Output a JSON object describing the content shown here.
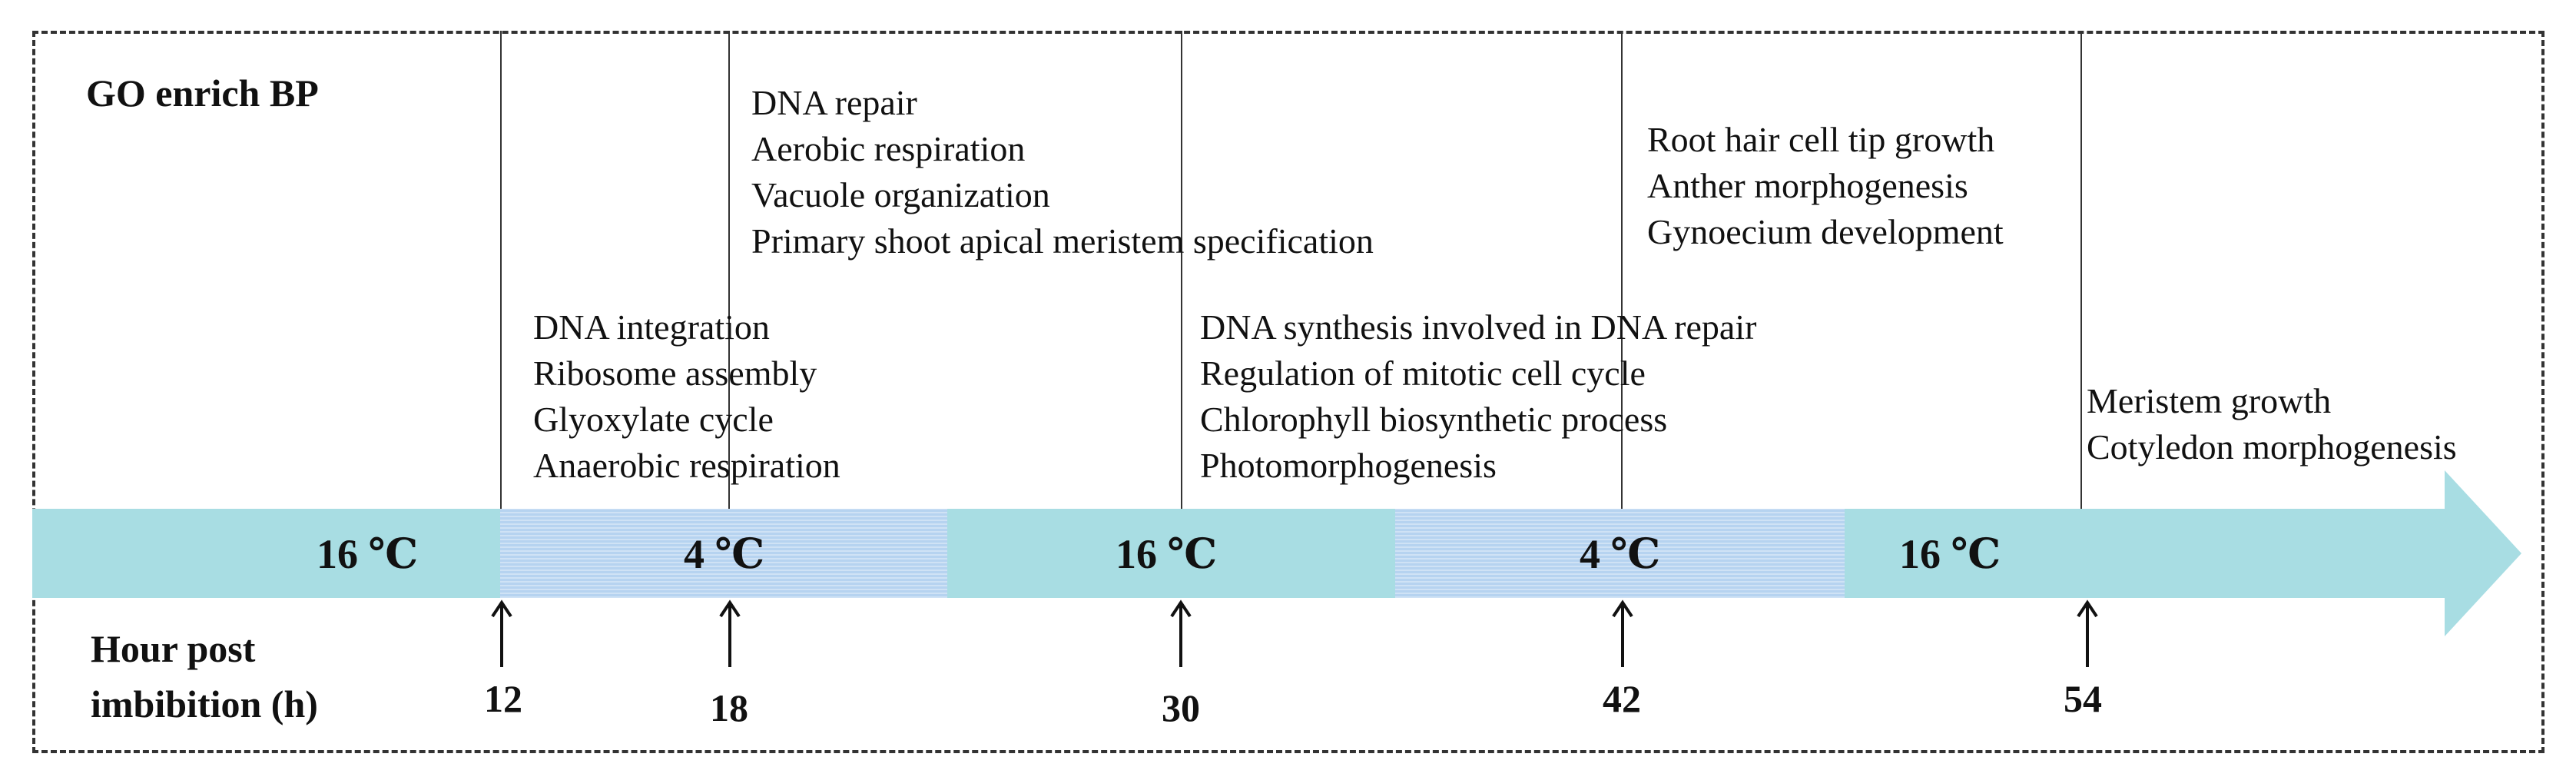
{
  "title": "GO enrich BP",
  "axis_title": [
    "Hour post",
    "imbibition (h)"
  ],
  "timepoints": [
    "12",
    "18",
    "30",
    "42",
    "54"
  ],
  "temperatures": [
    "16 ℃",
    "4 ℃",
    "16 ℃",
    "4 ℃",
    "16 ℃"
  ],
  "term_groups": [
    [
      "DNA integration",
      "Ribosome assembly",
      "Glyoxylate cycle",
      "Anaerobic respiration"
    ],
    [
      "DNA repair",
      "Aerobic respiration",
      "Vacuole organization",
      "Primary shoot apical meristem specification"
    ],
    [
      "DNA synthesis involved in DNA repair",
      "Regulation of mitotic cell cycle",
      "Chlorophyll biosynthetic process",
      "Photomorphogenesis"
    ],
    [
      "Root hair cell tip growth",
      "Anther morphogenesis",
      "Gynoecium development"
    ],
    [
      "Meristem growth",
      "Cotyledon morphogenesis"
    ]
  ],
  "colors": {
    "warm_band": "#a8dde3",
    "cold_band": "#b6d3f0",
    "line": "#333333"
  }
}
